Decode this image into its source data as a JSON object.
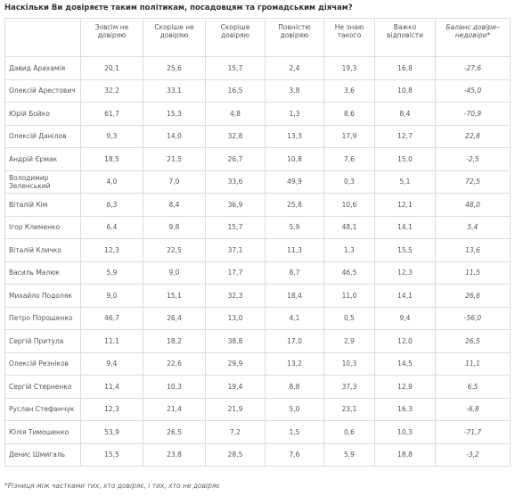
{
  "title": "Наскільки Ви довіряєте таким політикам, посадовцям та громадським діячам?",
  "table": {
    "header": [
      "Зовсім не довіряю",
      "Скоріше не довіряю",
      "Скоріше довіряю",
      "Повністю довіряю",
      "Не знаю такого",
      "Важко відповісти",
      "Баланс довіри–недовіри*"
    ],
    "rows": [
      [
        "Давид Арахамія",
        "20,1",
        "25,6",
        "15,7",
        "2,4",
        "19,3",
        "16,8",
        "-27,6"
      ],
      [
        "Олексій Арестович",
        "32,2",
        "33,1",
        "16,5",
        "3,8",
        "3,6",
        "10,8",
        "-45,0"
      ],
      [
        "Юрій Бойко",
        "61,7",
        "15,3",
        "4,8",
        "1,3",
        "8,6",
        "8,4",
        "-70,9"
      ],
      [
        "Олексій Данілов",
        "9,3",
        "14,0",
        "32,8",
        "13,3",
        "17,9",
        "12,7",
        "22,8"
      ],
      [
        "Андрій Єрмак",
        "18,5",
        "21,5",
        "26,7",
        "10,8",
        "7,6",
        "15,0",
        "-2,5"
      ],
      [
        "Володимир Зеленський",
        "4,0",
        "7,0",
        "33,6",
        "49,9",
        "0,3",
        "5,1",
        "72,5"
      ],
      [
        "Віталій Кім",
        "6,3",
        "8,4",
        "36,9",
        "25,8",
        "10,6",
        "12,1",
        "48,0"
      ],
      [
        "Ігор Клименко",
        "6,4",
        "9,8",
        "15,7",
        "5,9",
        "48,1",
        "14,1",
        "5,4"
      ],
      [
        "Віталій Кличко",
        "12,3",
        "22,5",
        "37,1",
        "11,3",
        "1,3",
        "15,5",
        "13,6"
      ],
      [
        "Василь Малюк",
        "5,9",
        "9,0",
        "17,7",
        "8,7",
        "46,5",
        "12,3",
        "11,5"
      ],
      [
        "Михайло Подоляк",
        "9,0",
        "15,1",
        "32,3",
        "18,4",
        "11,0",
        "14,1",
        "26,6"
      ],
      [
        "Петро Порошенко",
        "46,7",
        "26,4",
        "13,0",
        "4,1",
        "0,5",
        "9,4",
        "-56,0"
      ],
      [
        "Сергій Притула",
        "11,1",
        "18,2",
        "38,8",
        "17,0",
        "2,9",
        "12,0",
        "26,5"
      ],
      [
        "Олексій Резніков",
        "9,4",
        "22,6",
        "29,9",
        "13,2",
        "10,3",
        "14,5",
        "11,1"
      ],
      [
        "Сергій Стерненко",
        "11,4",
        "10,3",
        "19,4",
        "8,8",
        "37,3",
        "12,9",
        "6,5"
      ],
      [
        "Руслан Стефанчук",
        "12,3",
        "21,4",
        "21,9",
        "5,0",
        "23,1",
        "16,3",
        "-6,8"
      ],
      [
        "Юлія Тимошенко",
        "53,9",
        "26,5",
        "7,2",
        "1,5",
        "0,6",
        "10,3",
        "-71,7"
      ],
      [
        "Денис Шмигаль",
        "15,5",
        "23,8",
        "28,5",
        "7,6",
        "5,9",
        "18,8",
        "-3,2"
      ]
    ]
  },
  "footnote": "*Різниця між частками тих, хто довіряє, і тих, хто не довіряє"
}
